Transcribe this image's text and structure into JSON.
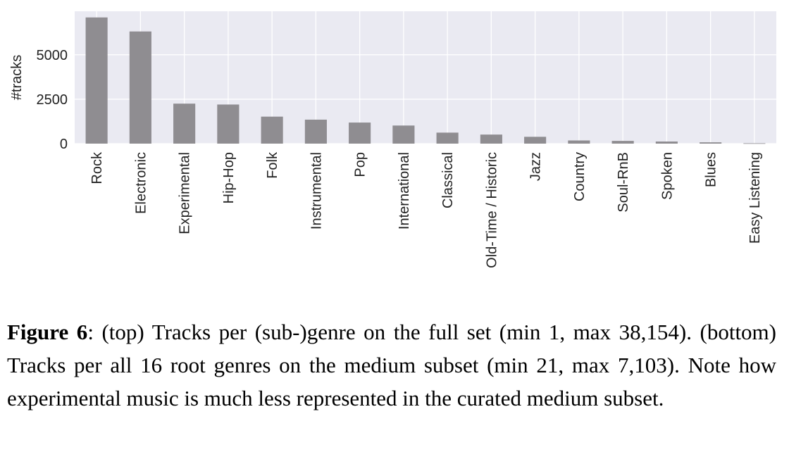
{
  "chart_data": {
    "type": "bar",
    "categories": [
      "Rock",
      "Electronic",
      "Experimental",
      "Hip-Hop",
      "Folk",
      "Instrumental",
      "Pop",
      "International",
      "Classical",
      "Old-Time / Historic",
      "Jazz",
      "Country",
      "Soul-RnB",
      "Spoken",
      "Blues",
      "Easy Listening"
    ],
    "values": [
      7103,
      6314,
      2251,
      2201,
      1519,
      1350,
      1186,
      1018,
      619,
      510,
      384,
      178,
      154,
      118,
      74,
      21
    ],
    "xlabel": "",
    "ylabel": "#tracks",
    "yticks": [
      0,
      2500,
      5000
    ],
    "ylim": [
      0,
      7450
    ],
    "grid": true,
    "colors": {
      "bar": "#8f8d91",
      "plot_bg": "#eaeaf2",
      "grid": "#ffffff"
    }
  },
  "caption": {
    "label": "Figure 6",
    "text": ": (top) Tracks per (sub-)genre on the full set (min 1, max 38,154). (bottom) Tracks per all 16 root genres on the medium subset (min 21, max 7,103). Note how experimental music is much less represented in the curated medium subset."
  }
}
